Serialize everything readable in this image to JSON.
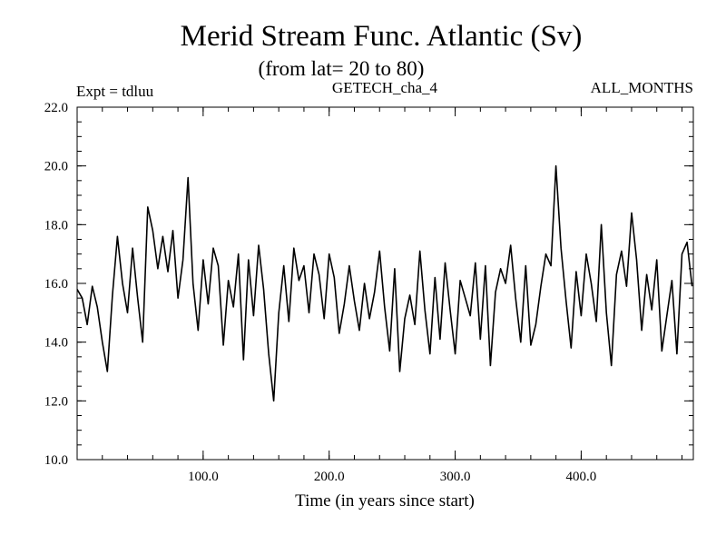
{
  "chart_data": {
    "type": "line",
    "title": "Merid Stream Func. Atlantic (Sv)",
    "subtitle": "(from lat= 20 to 80)",
    "experiment": "Expt = tdluu",
    "dataset": "GETECH_cha_4",
    "period": "ALL_MONTHS",
    "xlabel": "Time (in years since start)",
    "ylabel": "",
    "xlim": [
      0,
      489
    ],
    "ylim": [
      10.0,
      22.0
    ],
    "x_ticks": [
      100,
      200,
      300,
      400
    ],
    "x_tick_labels": [
      "100.0",
      "200.0",
      "300.0",
      "400.0"
    ],
    "y_ticks": [
      10,
      12,
      14,
      16,
      18,
      20,
      22
    ],
    "y_tick_labels": [
      "10.0",
      "12.0",
      "14.0",
      "16.0",
      "18.0",
      "20.0",
      "22.0"
    ],
    "x_minor_step": 20,
    "y_minor_step": 0.5,
    "grid": false,
    "series": [
      {
        "name": "",
        "color": "#000000",
        "x": [
          0,
          4,
          8,
          12,
          16,
          20,
          24,
          28,
          32,
          36,
          40,
          44,
          48,
          52,
          56,
          60,
          64,
          68,
          72,
          76,
          80,
          84,
          88,
          92,
          96,
          100,
          104,
          108,
          112,
          116,
          120,
          124,
          128,
          132,
          136,
          140,
          144,
          148,
          152,
          156,
          160,
          164,
          168,
          172,
          176,
          180,
          184,
          188,
          192,
          196,
          200,
          204,
          208,
          212,
          216,
          220,
          224,
          228,
          232,
          236,
          240,
          244,
          248,
          252,
          256,
          260,
          264,
          268,
          272,
          276,
          280,
          284,
          288,
          292,
          296,
          300,
          304,
          308,
          312,
          316,
          320,
          324,
          328,
          332,
          336,
          340,
          344,
          348,
          352,
          356,
          360,
          364,
          368,
          372,
          376,
          380,
          384,
          388,
          392,
          396,
          400,
          404,
          408,
          412,
          416,
          420,
          424,
          428,
          432,
          436,
          440,
          444,
          448,
          452,
          456,
          460,
          464,
          468,
          472,
          476,
          480,
          484,
          488
        ],
        "values": [
          15.8,
          15.5,
          14.6,
          15.9,
          15.2,
          14.0,
          13.0,
          15.6,
          17.6,
          16.0,
          15.0,
          17.2,
          15.5,
          14.0,
          18.6,
          17.8,
          16.5,
          17.6,
          16.4,
          17.8,
          15.5,
          16.8,
          19.6,
          16.0,
          14.4,
          16.8,
          15.3,
          17.2,
          16.6,
          13.9,
          16.1,
          15.2,
          17.0,
          13.4,
          16.8,
          14.9,
          17.3,
          15.8,
          13.6,
          12.0,
          15.0,
          16.6,
          14.7,
          17.2,
          16.1,
          16.6,
          15.0,
          17.0,
          16.3,
          14.8,
          17.0,
          16.2,
          14.3,
          15.3,
          16.6,
          15.4,
          14.4,
          16.0,
          14.8,
          15.7,
          17.1,
          15.2,
          13.7,
          16.5,
          13.0,
          14.8,
          15.6,
          14.6,
          17.1,
          15.1,
          13.6,
          16.2,
          14.1,
          16.7,
          15.1,
          13.6,
          16.1,
          15.5,
          14.9,
          16.7,
          14.1,
          16.6,
          13.2,
          15.7,
          16.5,
          16.0,
          17.3,
          15.5,
          14.0,
          16.6,
          13.9,
          14.6,
          15.9,
          17.0,
          16.6,
          20.0,
          17.2,
          15.4,
          13.8,
          16.4,
          14.9,
          17.0,
          16.0,
          14.7,
          18.0,
          15.0,
          13.2,
          16.3,
          17.1,
          15.9,
          18.4,
          16.8,
          14.4,
          16.3,
          15.1,
          16.8,
          13.7,
          14.9,
          16.1,
          13.6,
          17.0,
          17.4,
          15.9
        ]
      }
    ]
  }
}
